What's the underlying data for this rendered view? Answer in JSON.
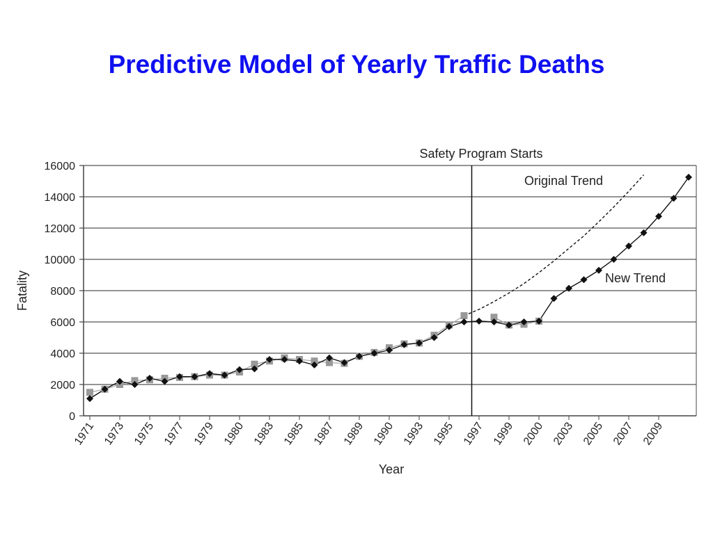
{
  "slide": {
    "title": "Predictive Model of Yearly Traffic Deaths"
  },
  "chart_data": {
    "type": "line",
    "title": "",
    "xlabel": "Year",
    "ylabel": "Fatality",
    "ylim": [
      0,
      16000
    ],
    "yticks": [
      0,
      2000,
      4000,
      6000,
      8000,
      10000,
      12000,
      14000,
      16000
    ],
    "grid": "horizontal",
    "x_tick_labels": [
      "1971",
      "1973",
      "1975",
      "1977",
      "1979",
      "1980",
      "1983",
      "1985",
      "1987",
      "1989",
      "1990",
      "1993",
      "1995",
      "1997",
      "1999",
      "2000",
      "2003",
      "2005",
      "2007",
      "2009"
    ],
    "annotations": {
      "program_start": "Safety Program Starts",
      "original_trend": "Original Trend",
      "new_trend": "New Trend"
    },
    "series": [
      {
        "marker": "diamond",
        "color": "#111111",
        "values": [
          1100,
          1700,
          2200,
          2000,
          2400,
          2200,
          2500,
          2500,
          2700,
          2600,
          2950,
          3000,
          3600,
          3600,
          3500,
          3250,
          3700,
          3400,
          3800,
          4000,
          4200,
          4550,
          4650,
          5000,
          5700,
          6000,
          6050,
          6000,
          5800,
          6000,
          6050,
          7500,
          8150,
          8700,
          9300,
          10000,
          10850,
          11700,
          12750,
          13900,
          15250
        ]
      },
      {
        "marker": "square",
        "color": "#999999",
        "values": [
          1500,
          1700,
          2000,
          2250,
          2300,
          2400,
          2450,
          2500,
          2600,
          2600,
          2800,
          3300,
          3500,
          3700,
          3600,
          3500,
          3400,
          3350,
          3800,
          4050,
          4350,
          4600,
          4650,
          5150,
          5800,
          6400,
          null,
          6300,
          5800,
          5850,
          6050
        ]
      },
      {
        "style": "dashed",
        "color": "#111111",
        "values": [
          null,
          null,
          null,
          null,
          null,
          null,
          null,
          null,
          null,
          null,
          null,
          null,
          null,
          null,
          null,
          null,
          null,
          null,
          null,
          null,
          null,
          null,
          null,
          null,
          null,
          6400,
          6800,
          7300,
          7850,
          8450,
          9150,
          9900,
          10700,
          11500,
          12400,
          13350,
          14350,
          15400
        ]
      }
    ]
  }
}
